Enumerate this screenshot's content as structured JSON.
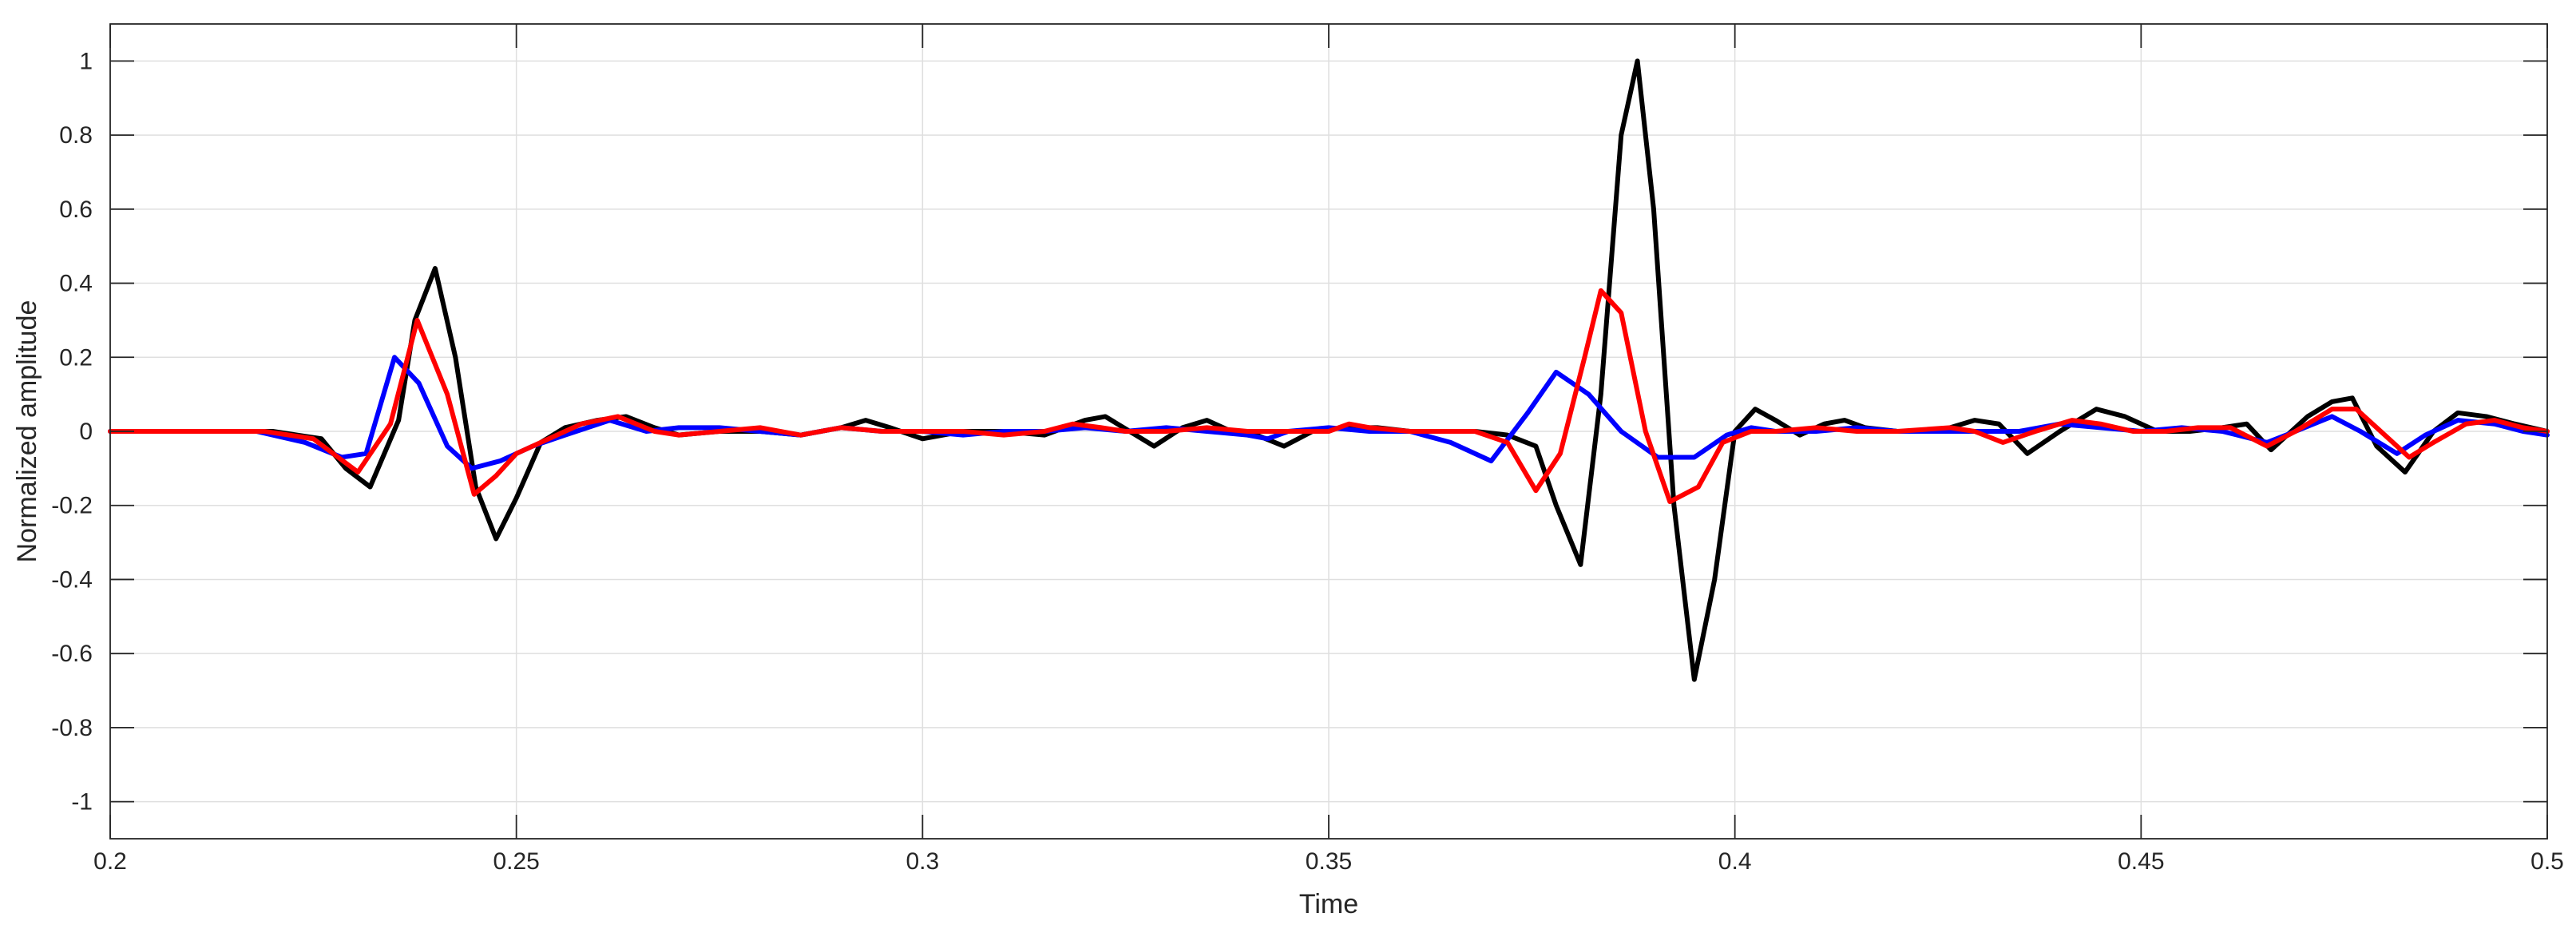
{
  "chart_data": {
    "type": "line",
    "title": "",
    "xlabel": "Time",
    "ylabel": "Normalized amplitude",
    "xlim": [
      0.2,
      0.5
    ],
    "ylim": [
      -1.1,
      1.1
    ],
    "xticks": [
      0.2,
      0.25,
      0.3,
      0.35,
      0.4,
      0.45,
      0.5
    ],
    "xtick_labels": [
      "0.2",
      "0.25",
      "0.3",
      "0.35",
      "0.4",
      "0.45",
      "0.5"
    ],
    "yticks": [
      -1,
      -0.8,
      -0.6,
      -0.4,
      -0.2,
      0,
      0.2,
      0.4,
      0.6,
      0.8,
      1
    ],
    "ytick_labels": [
      "-1",
      "-0.8",
      "-0.6",
      "-0.4",
      "-0.2",
      "0",
      "0.2",
      "0.4",
      "0.6",
      "0.8",
      "1"
    ],
    "grid": true,
    "box": true,
    "series": [
      {
        "color": "#000000",
        "x": [
          0.2,
          0.22,
          0.226,
          0.229,
          0.232,
          0.2355,
          0.2375,
          0.24,
          0.2425,
          0.245,
          0.2475,
          0.25,
          0.253,
          0.256,
          0.26,
          0.2635,
          0.267,
          0.27,
          0.275,
          0.28,
          0.285,
          0.29,
          0.293,
          0.296,
          0.3,
          0.305,
          0.31,
          0.315,
          0.32,
          0.3225,
          0.3255,
          0.3285,
          0.332,
          0.335,
          0.338,
          0.34,
          0.3445,
          0.348,
          0.352,
          0.356,
          0.36,
          0.364,
          0.368,
          0.372,
          0.3755,
          0.378,
          0.381,
          0.3835,
          0.386,
          0.388,
          0.39,
          0.3925,
          0.395,
          0.3975,
          0.4,
          0.4025,
          0.405,
          0.408,
          0.411,
          0.4135,
          0.416,
          0.42,
          0.425,
          0.4295,
          0.4325,
          0.436,
          0.44,
          0.4445,
          0.448,
          0.452,
          0.456,
          0.46,
          0.463,
          0.466,
          0.4705,
          0.4735,
          0.476,
          0.479,
          0.4825,
          0.486,
          0.489,
          0.4925,
          0.496,
          0.5
        ],
        "y": [
          0.0,
          0.0,
          -0.02,
          -0.1,
          -0.15,
          0.03,
          0.3,
          0.44,
          0.2,
          -0.15,
          -0.29,
          -0.18,
          -0.03,
          0.01,
          0.03,
          0.04,
          0.01,
          -0.01,
          0.0,
          0.0,
          -0.01,
          0.01,
          0.03,
          0.01,
          -0.02,
          0.0,
          0.0,
          -0.01,
          0.03,
          0.04,
          0.0,
          -0.04,
          0.01,
          0.03,
          0.0,
          0.0,
          -0.04,
          0.0,
          0.01,
          0.01,
          0.0,
          0.0,
          0.0,
          -0.01,
          -0.04,
          -0.2,
          -0.36,
          0.1,
          0.8,
          1.0,
          0.6,
          -0.2,
          -0.67,
          -0.4,
          0.0,
          0.06,
          0.03,
          -0.01,
          0.02,
          0.03,
          0.01,
          0.0,
          0.0,
          0.03,
          0.02,
          -0.06,
          0.0,
          0.06,
          0.04,
          0.0,
          0.0,
          0.01,
          0.02,
          -0.05,
          0.04,
          0.08,
          0.09,
          -0.04,
          -0.11,
          0.0,
          0.05,
          0.04,
          0.02,
          0.0
        ]
      },
      {
        "color": "#0000ff",
        "x": [
          0.2,
          0.218,
          0.224,
          0.2285,
          0.2315,
          0.235,
          0.238,
          0.2415,
          0.2445,
          0.248,
          0.252,
          0.256,
          0.2615,
          0.266,
          0.27,
          0.275,
          0.28,
          0.285,
          0.29,
          0.295,
          0.3,
          0.305,
          0.31,
          0.315,
          0.32,
          0.325,
          0.33,
          0.335,
          0.34,
          0.3425,
          0.345,
          0.35,
          0.355,
          0.36,
          0.365,
          0.37,
          0.3745,
          0.378,
          0.382,
          0.386,
          0.3905,
          0.395,
          0.399,
          0.402,
          0.405,
          0.41,
          0.415,
          0.42,
          0.425,
          0.43,
          0.435,
          0.44,
          0.445,
          0.45,
          0.455,
          0.46,
          0.4655,
          0.469,
          0.4735,
          0.477,
          0.4815,
          0.485,
          0.489,
          0.4935,
          0.497,
          0.5
        ],
        "y": [
          0.0,
          0.0,
          -0.03,
          -0.07,
          -0.06,
          0.2,
          0.13,
          -0.04,
          -0.1,
          -0.08,
          -0.04,
          -0.01,
          0.03,
          0.0,
          0.01,
          0.01,
          0.0,
          -0.01,
          0.01,
          0.0,
          0.0,
          -0.01,
          0.0,
          0.0,
          0.01,
          0.0,
          0.01,
          0.0,
          -0.01,
          -0.02,
          0.0,
          0.01,
          0.0,
          0.0,
          -0.03,
          -0.08,
          0.05,
          0.16,
          0.1,
          0.0,
          -0.07,
          -0.07,
          -0.01,
          0.01,
          0.0,
          0.0,
          0.01,
          0.0,
          0.0,
          0.0,
          0.0,
          0.02,
          0.01,
          0.0,
          0.01,
          0.0,
          -0.03,
          0.0,
          0.04,
          0.0,
          -0.06,
          -0.01,
          0.03,
          0.02,
          0.0,
          -0.01
        ]
      },
      {
        "color": "#ff0000",
        "x": [
          0.2,
          0.219,
          0.225,
          0.2305,
          0.2345,
          0.2378,
          0.2415,
          0.2448,
          0.2475,
          0.25,
          0.254,
          0.258,
          0.2625,
          0.267,
          0.27,
          0.275,
          0.28,
          0.285,
          0.29,
          0.295,
          0.3,
          0.305,
          0.31,
          0.315,
          0.3185,
          0.322,
          0.325,
          0.33,
          0.335,
          0.34,
          0.345,
          0.35,
          0.3525,
          0.355,
          0.36,
          0.364,
          0.368,
          0.372,
          0.3755,
          0.3785,
          0.3815,
          0.3835,
          0.386,
          0.389,
          0.392,
          0.3955,
          0.3985,
          0.402,
          0.405,
          0.41,
          0.415,
          0.42,
          0.4265,
          0.4295,
          0.433,
          0.437,
          0.4415,
          0.445,
          0.449,
          0.453,
          0.457,
          0.461,
          0.4655,
          0.469,
          0.4735,
          0.4765,
          0.4795,
          0.483,
          0.486,
          0.49,
          0.4935,
          0.497,
          0.5
        ],
        "y": [
          0.0,
          0.0,
          -0.02,
          -0.11,
          0.02,
          0.3,
          0.1,
          -0.17,
          -0.12,
          -0.06,
          -0.02,
          0.02,
          0.04,
          0.0,
          -0.01,
          0.0,
          0.01,
          -0.01,
          0.01,
          0.0,
          0.0,
          0.0,
          -0.01,
          0.0,
          0.02,
          0.01,
          0.0,
          0.0,
          0.01,
          0.0,
          0.0,
          0.0,
          0.02,
          0.01,
          0.0,
          0.0,
          0.0,
          -0.03,
          -0.16,
          -0.06,
          0.2,
          0.38,
          0.32,
          0.0,
          -0.19,
          -0.15,
          -0.03,
          0.0,
          0.0,
          0.01,
          0.0,
          0.0,
          0.01,
          0.0,
          -0.03,
          0.0,
          0.03,
          0.02,
          0.0,
          0.0,
          0.01,
          0.01,
          -0.04,
          0.0,
          0.06,
          0.06,
          0.0,
          -0.07,
          -0.03,
          0.02,
          0.03,
          0.01,
          0.0
        ]
      }
    ]
  }
}
